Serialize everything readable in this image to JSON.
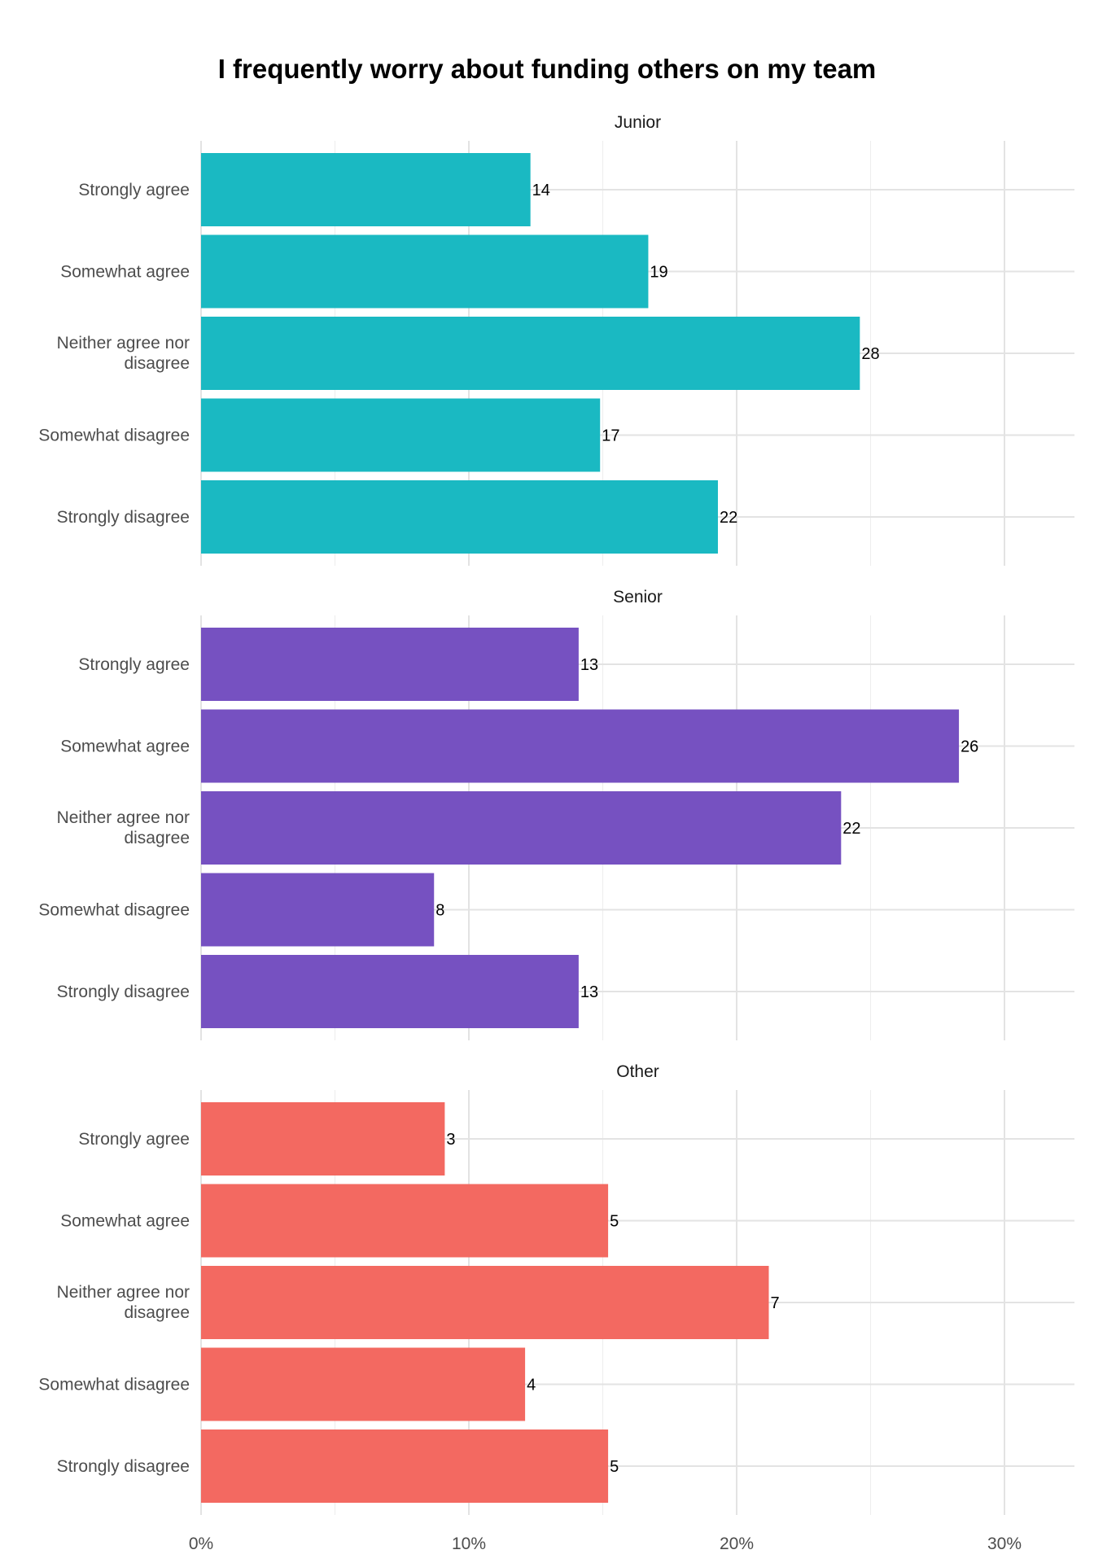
{
  "chart_data": {
    "type": "bar",
    "orientation": "horizontal",
    "title": "I frequently worry about funding others on my team",
    "xlabel": "",
    "ylabel": "",
    "categories": [
      "Strongly agree",
      "Somewhat agree",
      "Neither agree nor disagree",
      "Somewhat disagree",
      "Strongly disagree"
    ],
    "category_lines": [
      [
        "Strongly agree"
      ],
      [
        "Somewhat agree"
      ],
      [
        "Neither agree nor",
        "disagree"
      ],
      [
        "Somewhat disagree"
      ],
      [
        "Strongly disagree"
      ]
    ],
    "x_unit": "percent",
    "xlim": [
      0,
      32.5
    ],
    "x_ticks": [
      0,
      10,
      20,
      30
    ],
    "x_tick_labels": [
      "0%",
      "10%",
      "20%",
      "30%"
    ],
    "grid": true,
    "legend": "none",
    "facets": [
      {
        "name": "Junior",
        "color": "#1ab9c2",
        "counts": [
          14,
          19,
          28,
          17,
          22
        ],
        "percent": [
          12.3,
          16.7,
          24.6,
          14.9,
          19.3
        ]
      },
      {
        "name": "Senior",
        "color": "#7651c1",
        "counts": [
          13,
          26,
          22,
          8,
          13
        ],
        "percent": [
          14.1,
          28.3,
          23.9,
          8.7,
          14.1
        ]
      },
      {
        "name": "Other",
        "color": "#f36961",
        "counts": [
          3,
          5,
          7,
          4,
          5
        ],
        "percent": [
          9.1,
          15.2,
          21.2,
          12.1,
          15.2
        ]
      }
    ]
  }
}
